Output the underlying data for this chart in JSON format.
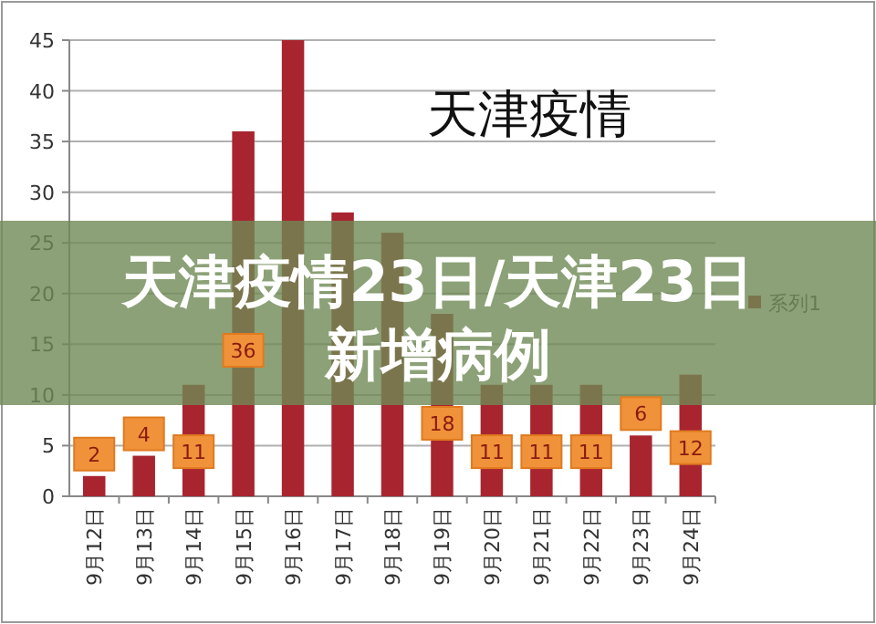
{
  "chart_data": {
    "type": "bar",
    "title": "天津疫情",
    "annotations": [
      "天津疫情23日/天津23日新增病例"
    ],
    "categories": [
      "9月12日",
      "9月13日",
      "9月14日",
      "9月15日",
      "9月16日",
      "9月17日",
      "9月18日",
      "9月19日",
      "9月20日",
      "9月21日",
      "9月22日",
      "9月23日",
      "9月24日"
    ],
    "series": [
      {
        "name": "系列1",
        "color": "#a8252f",
        "values": [
          2,
          4,
          11,
          36,
          45,
          28,
          26,
          18,
          11,
          11,
          11,
          6,
          12
        ],
        "value_labels": [
          "2",
          "4",
          "11",
          "36",
          null,
          null,
          null,
          "18",
          "11",
          "11",
          "11",
          "6",
          "12"
        ]
      }
    ],
    "ylim": [
      0,
      45
    ],
    "yticks": [
      0,
      5,
      10,
      15,
      20,
      25,
      30,
      35,
      40,
      45
    ],
    "grid": "y",
    "legend": "right"
  }
}
